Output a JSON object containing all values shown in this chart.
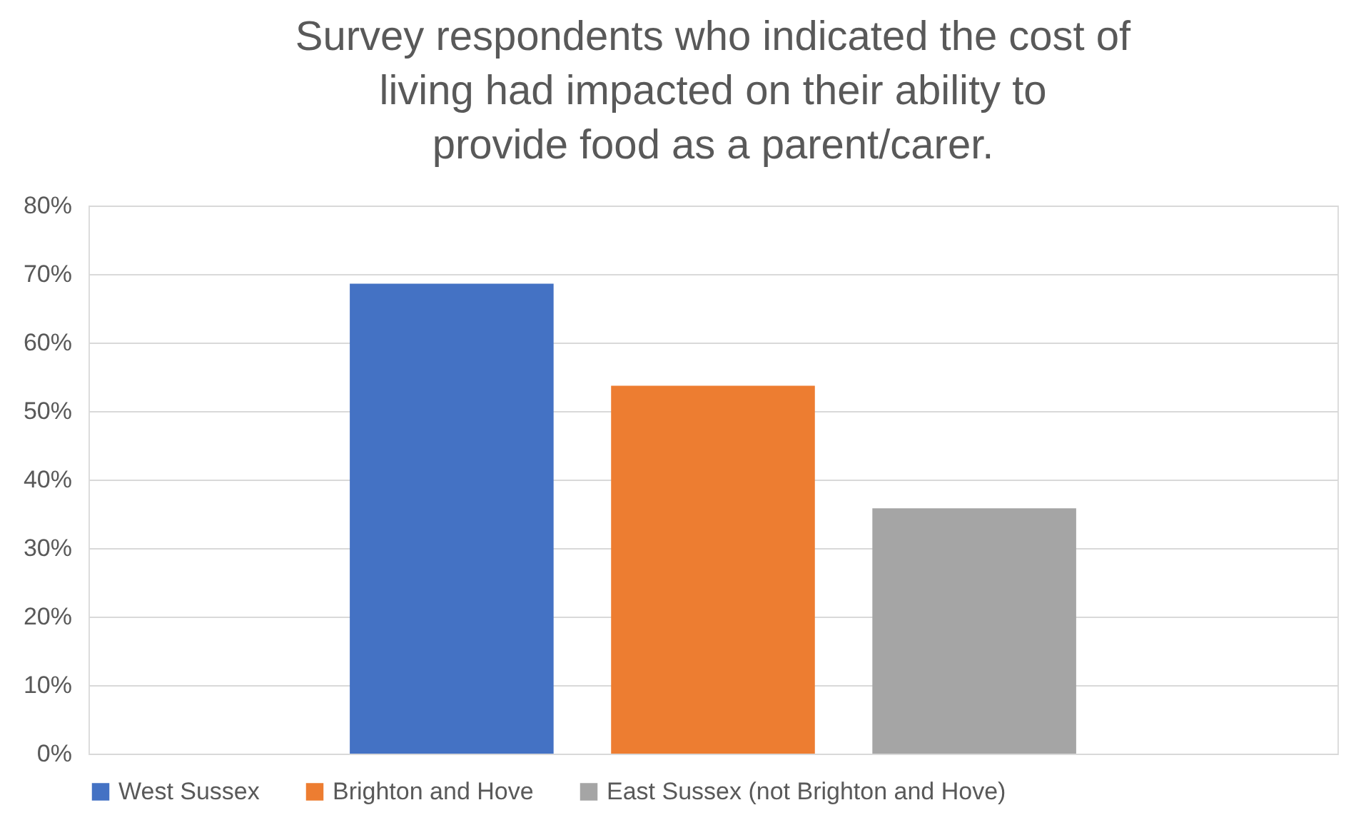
{
  "chart_data": {
    "type": "bar",
    "title": "Survey respondents who indicated the cost of living had impacted on their ability to provide food as a parent/carer.",
    "categories": [
      null
    ],
    "series": [
      {
        "name": "West Sussex",
        "color": "#4472c4",
        "values": [
          0.686
        ]
      },
      {
        "name": "Brighton and Hove",
        "color": "#ed7d31",
        "values": [
          0.537
        ]
      },
      {
        "name": "East Sussex (not Brighton and Hove)",
        "color": "#a5a5a5",
        "values": [
          0.358
        ]
      }
    ],
    "ylim": [
      0,
      0.8
    ],
    "yticks": [
      {
        "value": 0,
        "label": "0%"
      },
      {
        "value": 0.1,
        "label": "10%"
      },
      {
        "value": 0.2,
        "label": "20%"
      },
      {
        "value": 0.3,
        "label": "30%"
      },
      {
        "value": 0.4,
        "label": "40%"
      },
      {
        "value": 0.5,
        "label": "50%"
      },
      {
        "value": 0.6,
        "label": "60%"
      },
      {
        "value": 0.7,
        "label": "70%"
      },
      {
        "value": 0.8,
        "label": "80%"
      }
    ],
    "grid": "y",
    "legend": "bottom",
    "tick_labels": "y"
  }
}
